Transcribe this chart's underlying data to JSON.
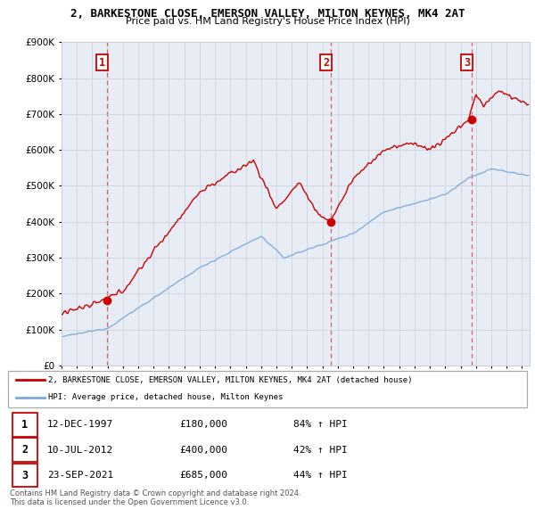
{
  "title_line1": "2, BARKESTONE CLOSE, EMERSON VALLEY, MILTON KEYNES, MK4 2AT",
  "title_line2": "Price paid vs. HM Land Registry's House Price Index (HPI)",
  "background_color": "#ffffff",
  "plot_bg_color": "#e8edf5",
  "grid_color": "#c8d0dc",
  "sale_color": "#cc0000",
  "hpi_color": "#7aaadd",
  "dashed_color": "#dd4444",
  "legend_sale_label": "2, BARKESTONE CLOSE, EMERSON VALLEY, MILTON KEYNES, MK4 2AT (detached house)",
  "legend_hpi_label": "HPI: Average price, detached house, Milton Keynes",
  "transactions": [
    {
      "num": 1,
      "date": "12-DEC-1997",
      "price": 180000,
      "pct": "84%",
      "year": 1997.95
    },
    {
      "num": 2,
      "date": "10-JUL-2012",
      "price": 400000,
      "pct": "42%",
      "year": 2012.53
    },
    {
      "num": 3,
      "date": "23-SEP-2021",
      "price": 685000,
      "pct": "44%",
      "year": 2021.73
    }
  ],
  "footer_line1": "Contains HM Land Registry data © Crown copyright and database right 2024.",
  "footer_line2": "This data is licensed under the Open Government Licence v3.0.",
  "ylim_max": 900000,
  "yticks": [
    0,
    100000,
    200000,
    300000,
    400000,
    500000,
    600000,
    700000,
    800000,
    900000
  ],
  "ytick_labels": [
    "£0",
    "£100K",
    "£200K",
    "£300K",
    "£400K",
    "£500K",
    "£600K",
    "£700K",
    "£800K",
    "£900K"
  ]
}
